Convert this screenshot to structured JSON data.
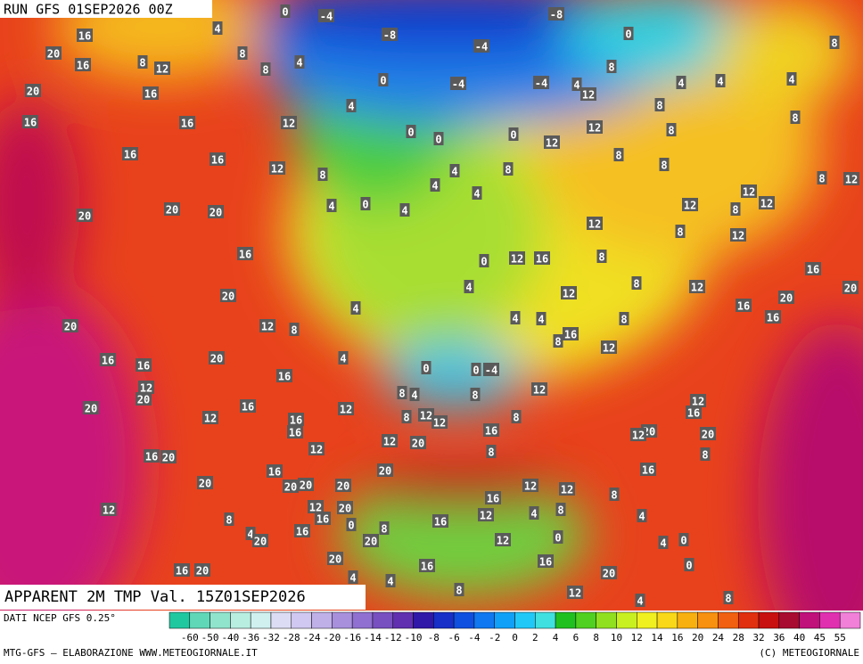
{
  "header": {
    "run": "RUN GFS 01SEP2026 00Z"
  },
  "map": {
    "title": "APPARENT 2M TMP Val. 15Z01SEP2026",
    "labels": [
      0,
      -4,
      -8,
      4,
      16,
      -8,
      -4,
      0,
      8,
      20,
      8,
      12,
      16,
      8,
      8,
      4,
      8,
      0,
      -4,
      -4,
      4,
      12,
      4,
      4,
      4,
      20,
      16,
      8,
      4,
      12,
      16,
      16,
      12,
      8,
      8,
      0,
      0,
      0,
      12,
      16,
      16,
      12,
      8,
      8,
      8,
      4,
      8,
      8,
      12,
      4,
      4,
      12,
      12,
      12,
      8,
      4,
      0,
      4,
      20,
      20,
      20,
      12,
      8,
      12,
      16,
      0,
      12,
      16,
      8,
      16,
      20,
      4,
      12,
      8,
      12,
      20,
      20,
      16,
      16,
      4,
      4,
      4,
      8,
      12,
      8,
      20,
      16,
      8,
      12,
      4,
      20,
      16,
      16,
      0,
      0,
      -4,
      16,
      12,
      20,
      8,
      4,
      8,
      12,
      20,
      16,
      12,
      12,
      16,
      8,
      12,
      12,
      8,
      16,
      16,
      12,
      16,
      20,
      12,
      20,
      12,
      20,
      12,
      8,
      8,
      16,
      20,
      16,
      20,
      16,
      20,
      20,
      20,
      20,
      12,
      12,
      8,
      16,
      12,
      12,
      20,
      4,
      8,
      12,
      4,
      8,
      16,
      16,
      0,
      8,
      4,
      16,
      20,
      20,
      12,
      0,
      4,
      0,
      20,
      16,
      16,
      0,
      20,
      4,
      4,
      12,
      8,
      4,
      8,
      16,
      20
    ]
  },
  "legend": {
    "source": "DATI NCEP GFS 0.25°",
    "scale": [
      "-60",
      "-50",
      "-40",
      "-36",
      "-32",
      "-28",
      "-24",
      "-20",
      "-16",
      "-14",
      "-12",
      "-10",
      "-8",
      "-6",
      "-4",
      "-2",
      "0",
      "2",
      "4",
      "6",
      "8",
      "10",
      "12",
      "14",
      "16",
      "20",
      "24",
      "28",
      "32",
      "36",
      "40",
      "45",
      "55"
    ]
  },
  "footer": {
    "credit": "MTG-GFS — ELABORAZIONE WWW.METEOGIORNALE.IT",
    "copyright": "(C) METEOGIORNALE"
  }
}
